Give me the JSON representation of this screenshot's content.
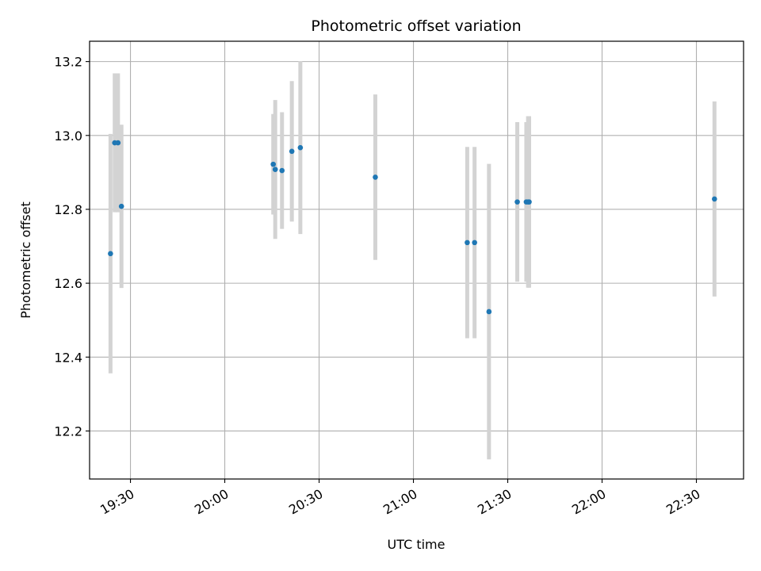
{
  "chart_data": {
    "type": "scatter",
    "title": "Photometric offset variation",
    "xlabel": "UTC time",
    "ylabel": "Photometric offset",
    "x_axis": {
      "scale": "time",
      "range": [
        "19:17",
        "22:45"
      ],
      "ticks": [
        "19:30",
        "20:00",
        "20:30",
        "21:00",
        "21:30",
        "22:00",
        "22:30"
      ],
      "tick_rotation_deg": 30
    },
    "y_axis": {
      "range": [
        12.07,
        13.255
      ],
      "ticks": [
        12.2,
        12.4,
        12.6,
        12.8,
        13.0,
        13.2
      ],
      "tick_labels": [
        "12.2",
        "12.4",
        "12.6",
        "12.8",
        "13.0",
        "13.2"
      ]
    },
    "grid": true,
    "legend": "none",
    "colors": {
      "point": "#1f77b4",
      "errorbar": "#d3d3d3",
      "grid": "#b0b0b0"
    },
    "series": [
      {
        "points": [
          {
            "x": "19:27:08",
            "y": 12.808,
            "err": 0.221
          },
          {
            "x": "19:23:39",
            "y": 12.68,
            "err": 0.324
          },
          {
            "x": "19:26:02",
            "y": 12.98,
            "err": 0.188
          },
          {
            "x": "19:25:00",
            "y": 12.98,
            "err": 0.188
          },
          {
            "x": "20:15:25",
            "y": 12.922,
            "err": 0.136
          },
          {
            "x": "20:16:03",
            "y": 12.908,
            "err": 0.188
          },
          {
            "x": "20:18:12",
            "y": 12.905,
            "err": 0.158
          },
          {
            "x": "20:21:20",
            "y": 12.957,
            "err": 0.19
          },
          {
            "x": "20:24:02",
            "y": 12.967,
            "err": 0.234
          },
          {
            "x": "20:47:53",
            "y": 12.887,
            "err": 0.224
          },
          {
            "x": "21:17:07",
            "y": 12.71,
            "err": 0.259
          },
          {
            "x": "21:19:27",
            "y": 12.71,
            "err": 0.259
          },
          {
            "x": "21:24:02",
            "y": 12.523,
            "err": 0.4
          },
          {
            "x": "21:33:02",
            "y": 12.82,
            "err": 0.216
          },
          {
            "x": "21:35:54",
            "y": 12.82,
            "err": 0.216
          },
          {
            "x": "21:36:28",
            "y": 12.82,
            "err": 0.232
          },
          {
            "x": "21:36:48",
            "y": 12.82,
            "err": 0.232
          },
          {
            "x": "22:35:45",
            "y": 12.828,
            "err": 0.264
          }
        ]
      }
    ]
  }
}
